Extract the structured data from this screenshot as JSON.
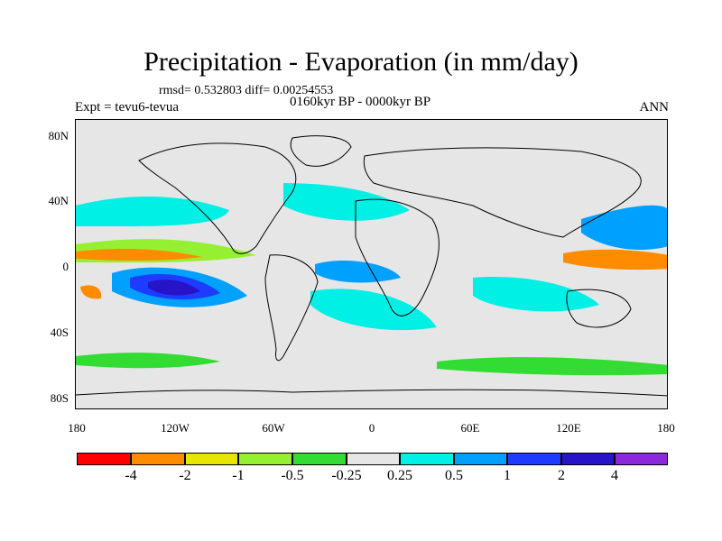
{
  "header": {
    "title": "Precipitation - Evaporation (in mm/day)",
    "stats": "rmsd= 0.532803 diff= 0.00254553",
    "period": "0160kyr BP - 0000kyr BP",
    "expt": "Expt = tevu6-tevua",
    "season": "ANN"
  },
  "axes": {
    "y_labels": [
      "80N",
      "40N",
      "0",
      "40S",
      "80S"
    ],
    "x_labels": [
      "180",
      "120W",
      "60W",
      "0",
      "60E",
      "120E",
      "180"
    ]
  },
  "colorbar": {
    "labels": [
      "-4",
      "-2",
      "-1",
      "-0.5",
      "-0.25",
      "0.25",
      "0.5",
      "1",
      "2",
      "4"
    ],
    "colors": [
      "#ff0000",
      "#ff8c00",
      "#e6e600",
      "#96f032",
      "#32dc32",
      "#e6e6e6",
      "#00f0e6",
      "#00a0ff",
      "#1e3cff",
      "#2814c8",
      "#8c28dc"
    ]
  },
  "legend_colors": {
    "ocean_neutral": "#e6e6e6",
    "coast": "#000000"
  }
}
